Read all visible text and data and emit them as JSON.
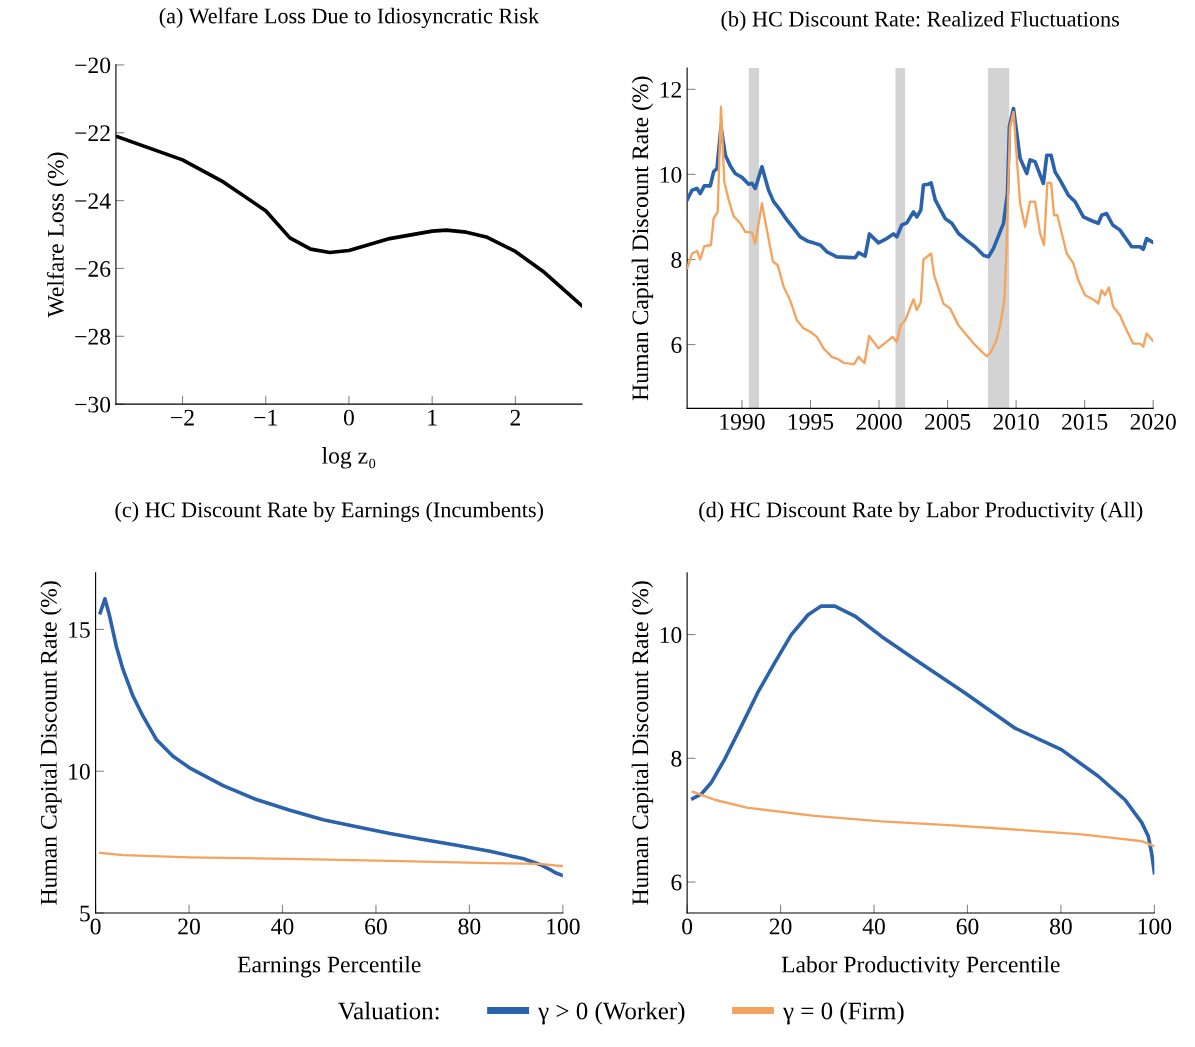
{
  "chart_data": [
    {
      "type": "line",
      "title": "(a) Welfare Loss Due to Idiosyncratic Risk",
      "xlabel": "log z₀",
      "ylabel": "Welfare Loss (%)",
      "xlim": [
        -2.8,
        2.8
      ],
      "ylim": [
        -30,
        -20
      ],
      "xticks": [
        {
          "value": -2,
          "label": "−2"
        },
        {
          "value": -1,
          "label": "−1"
        },
        0,
        1,
        2
      ],
      "yticks": [
        {
          "value": -30,
          "label": "−30"
        },
        {
          "value": -28,
          "label": "−28"
        },
        {
          "value": -26,
          "label": "−26"
        },
        {
          "value": -24,
          "label": "−24"
        },
        {
          "value": -22,
          "label": "−22"
        },
        {
          "value": -20,
          "label": "−20"
        }
      ],
      "grid": false,
      "series": [
        {
          "color": "#000000",
          "x": [
            -2.8,
            -2.0,
            -1.51,
            -1.0,
            -0.71,
            -0.46,
            -0.23,
            0.0,
            0.49,
            1.0,
            1.17,
            1.41,
            1.65,
            2.0,
            2.33,
            2.8
          ],
          "values": [
            -22.1,
            -22.8,
            -23.45,
            -24.3,
            -25.1,
            -25.43,
            -25.53,
            -25.47,
            -25.12,
            -24.9,
            -24.87,
            -24.93,
            -25.07,
            -25.5,
            -26.08,
            -27.1
          ]
        }
      ]
    },
    {
      "type": "line",
      "title": "(b) HC Discount Rate: Realized Fluctuations",
      "ylabel": "Human Capital Discount Rate (%)",
      "xlim": [
        1986,
        2020
      ],
      "ylim": [
        4.5,
        12.5
      ],
      "xticks": [
        1990,
        1995,
        2000,
        2005,
        2010,
        2015,
        2020
      ],
      "yticks": [
        6,
        8,
        10,
        12
      ],
      "grid": false,
      "bands": [
        {
          "axis": "x",
          "from": 1990.5,
          "to": 1991.25,
          "color": "#d3d3d3"
        },
        {
          "axis": "x",
          "from": 2001.2,
          "to": 2001.9,
          "color": "#d3d3d3"
        },
        {
          "axis": "x",
          "from": 2007.95,
          "to": 2009.5,
          "color": "#d3d3d3"
        }
      ],
      "series": [
        {
          "color": "#2a62ac",
          "x": [
            1986.0,
            1986.36,
            1986.72,
            1986.96,
            1987.25,
            1987.69,
            1987.93,
            1988.18,
            1988.47,
            1988.79,
            1989.15,
            1989.51,
            1990.0,
            1990.49,
            1990.73,
            1990.97,
            1991.46,
            1991.94,
            1992.31,
            1992.79,
            1993.28,
            1993.77,
            1994.25,
            1994.86,
            1995.22,
            1995.71,
            1996.2,
            1996.92,
            1997.65,
            1998.26,
            1998.5,
            1998.99,
            1999.3,
            1999.96,
            2000.45,
            2001.05,
            2001.3,
            2001.66,
            2002.03,
            2002.51,
            2002.76,
            2003.05,
            2003.24,
            2003.6,
            2003.8,
            2004.1,
            2004.83,
            2005.31,
            2005.8,
            2006.4,
            2007.01,
            2007.62,
            2007.98,
            2008.35,
            2008.83,
            2009.08,
            2009.37,
            2009.51,
            2009.81,
            2010.29,
            2010.78,
            2011.02,
            2011.38,
            2011.99,
            2012.24,
            2012.55,
            2012.84,
            2013.2,
            2013.81,
            2014.3,
            2014.91,
            2015.52,
            2016.0,
            2016.24,
            2016.6,
            2017.05,
            2017.58,
            2018.43,
            2019.04,
            2019.28,
            2019.52,
            2020.0
          ],
          "values": [
            9.4,
            9.63,
            9.67,
            9.55,
            9.73,
            9.73,
            10.06,
            10.14,
            11.12,
            10.45,
            10.2,
            10.02,
            9.93,
            9.77,
            9.79,
            9.67,
            10.18,
            9.63,
            9.36,
            9.16,
            8.93,
            8.73,
            8.53,
            8.42,
            8.39,
            8.34,
            8.18,
            8.06,
            8.05,
            8.04,
            8.16,
            8.08,
            8.6,
            8.39,
            8.47,
            8.6,
            8.53,
            8.81,
            8.86,
            9.12,
            9.0,
            9.16,
            9.75,
            9.77,
            9.8,
            9.4,
            8.96,
            8.85,
            8.61,
            8.45,
            8.3,
            8.1,
            8.06,
            8.26,
            8.65,
            8.85,
            9.55,
            11.12,
            11.55,
            10.38,
            10.02,
            10.34,
            10.3,
            9.79,
            10.45,
            10.45,
            10.06,
            9.87,
            9.51,
            9.36,
            9.0,
            8.91,
            8.85,
            9.04,
            9.08,
            8.81,
            8.69,
            8.3,
            8.3,
            8.24,
            8.49,
            8.4
          ]
        },
        {
          "color": "#f4a45f",
          "x": [
            1986.0,
            1986.36,
            1986.72,
            1986.96,
            1987.25,
            1987.74,
            1987.93,
            1988.23,
            1988.47,
            1988.71,
            1989.03,
            1989.39,
            1989.88,
            1990.24,
            1990.73,
            1990.97,
            1991.46,
            1991.87,
            1992.26,
            1992.6,
            1993.04,
            1993.52,
            1994.01,
            1994.49,
            1994.98,
            1995.47,
            1995.95,
            1996.56,
            1997.05,
            1997.41,
            1998.19,
            1998.5,
            1998.94,
            1999.28,
            1999.96,
            2000.33,
            2001.0,
            2001.3,
            2001.59,
            2001.9,
            2002.51,
            2002.76,
            2003.05,
            2003.24,
            2003.8,
            2004.02,
            2004.7,
            2005.19,
            2005.8,
            2006.4,
            2006.89,
            2007.38,
            2007.86,
            2008.1,
            2008.54,
            2008.83,
            2009.13,
            2009.27,
            2009.56,
            2009.81,
            2010.29,
            2010.66,
            2011.02,
            2011.38,
            2011.75,
            2012.04,
            2012.28,
            2012.55,
            2012.77,
            2013.01,
            2013.69,
            2014.18,
            2014.54,
            2015.03,
            2015.64,
            2016.0,
            2016.24,
            2016.48,
            2016.77,
            2017.09,
            2017.58,
            2017.94,
            2018.55,
            2019.04,
            2019.28,
            2019.52,
            2020.0
          ],
          "values": [
            7.79,
            8.14,
            8.2,
            8.0,
            8.31,
            8.34,
            8.96,
            9.12,
            11.59,
            9.83,
            9.4,
            9.02,
            8.85,
            8.65,
            8.63,
            8.38,
            9.32,
            8.61,
            7.95,
            7.87,
            7.36,
            7.04,
            6.57,
            6.38,
            6.3,
            6.18,
            5.91,
            5.71,
            5.65,
            5.57,
            5.54,
            5.71,
            5.56,
            6.2,
            5.91,
            6.01,
            6.18,
            6.06,
            6.46,
            6.56,
            7.06,
            6.81,
            7.0,
            8.0,
            8.14,
            7.63,
            6.96,
            6.85,
            6.45,
            6.22,
            6.03,
            5.87,
            5.72,
            5.79,
            6.07,
            6.44,
            7.0,
            7.98,
            11.12,
            11.47,
            9.32,
            8.77,
            9.36,
            9.36,
            8.61,
            8.34,
            9.8,
            9.8,
            9.04,
            9.04,
            8.14,
            7.91,
            7.51,
            7.16,
            7.06,
            6.96,
            7.28,
            7.16,
            7.34,
            6.89,
            6.69,
            6.42,
            6.02,
            6.02,
            5.95,
            6.26,
            6.08
          ]
        }
      ]
    },
    {
      "type": "line",
      "title": "(c) HC Discount Rate by Earnings (Incumbents)",
      "xlabel": "Earnings Percentile",
      "ylabel": "Human Capital Discount Rate (%)",
      "xlim": [
        0,
        100
      ],
      "ylim": [
        5,
        17
      ],
      "xticks": [
        0,
        20,
        40,
        60,
        80,
        100
      ],
      "yticks": [
        5,
        10,
        15
      ],
      "grid": false,
      "series": [
        {
          "color": "#2a62ac",
          "x": [
            1.0,
            2.0,
            3.0,
            4.43,
            5.86,
            8.0,
            10.14,
            13.0,
            16.57,
            20.1,
            27.3,
            34.4,
            41.6,
            48.7,
            55.9,
            63.0,
            70.1,
            77.3,
            84.4,
            91.6,
            95.1,
            97.6,
            98.4,
            100.0
          ],
          "values": [
            15.59,
            16.08,
            15.47,
            14.41,
            13.59,
            12.65,
            11.94,
            11.12,
            10.53,
            10.12,
            9.49,
            9.0,
            8.62,
            8.29,
            8.04,
            7.8,
            7.59,
            7.39,
            7.18,
            6.91,
            6.71,
            6.5,
            6.42,
            6.32
          ]
        },
        {
          "color": "#f4a45f",
          "x": [
            1.0,
            5.9,
            20.1,
            41.6,
            63.0,
            84.4,
            95.1,
            100.0
          ],
          "values": [
            7.12,
            7.04,
            6.96,
            6.91,
            6.84,
            6.76,
            6.73,
            6.65
          ]
        }
      ]
    },
    {
      "type": "line",
      "title": "(d) HC Discount Rate by Labor Productivity (All)",
      "xlabel": "Labor Productivity Percentile",
      "ylabel": "Human Capital Discount Rate (%)",
      "xlim": [
        0,
        100
      ],
      "ylim": [
        5.5,
        11
      ],
      "xticks": [
        0,
        20,
        40,
        60,
        80,
        100
      ],
      "yticks": [
        6,
        8,
        10
      ],
      "grid": false,
      "legend": "bottom",
      "legend_title": "Valuation:",
      "series": [
        {
          "name": "γ > 0 (Worker)",
          "color": "#2a62ac",
          "x": [
            1.2,
            3.0,
            5.1,
            8.0,
            11.6,
            15.1,
            18.7,
            22.3,
            25.9,
            28.7,
            31.6,
            35.9,
            41.6,
            48.7,
            59.4,
            70.1,
            80.1,
            88.0,
            93.7,
            97.3,
            98.7,
            99.4,
            100.0
          ],
          "values": [
            7.35,
            7.42,
            7.6,
            7.98,
            8.52,
            9.06,
            9.54,
            10.0,
            10.32,
            10.46,
            10.46,
            10.3,
            9.97,
            9.6,
            9.06,
            8.49,
            8.14,
            7.71,
            7.33,
            6.96,
            6.74,
            6.47,
            6.15
          ]
        },
        {
          "name": "γ = 0 (Firm)",
          "color": "#f4a45f",
          "x": [
            1.2,
            5.9,
            13.0,
            27.3,
            41.6,
            55.9,
            70.1,
            84.4,
            91.6,
            97.3,
            100.0
          ],
          "values": [
            7.46,
            7.33,
            7.2,
            7.07,
            6.98,
            6.92,
            6.85,
            6.77,
            6.71,
            6.66,
            6.58
          ]
        }
      ]
    }
  ]
}
